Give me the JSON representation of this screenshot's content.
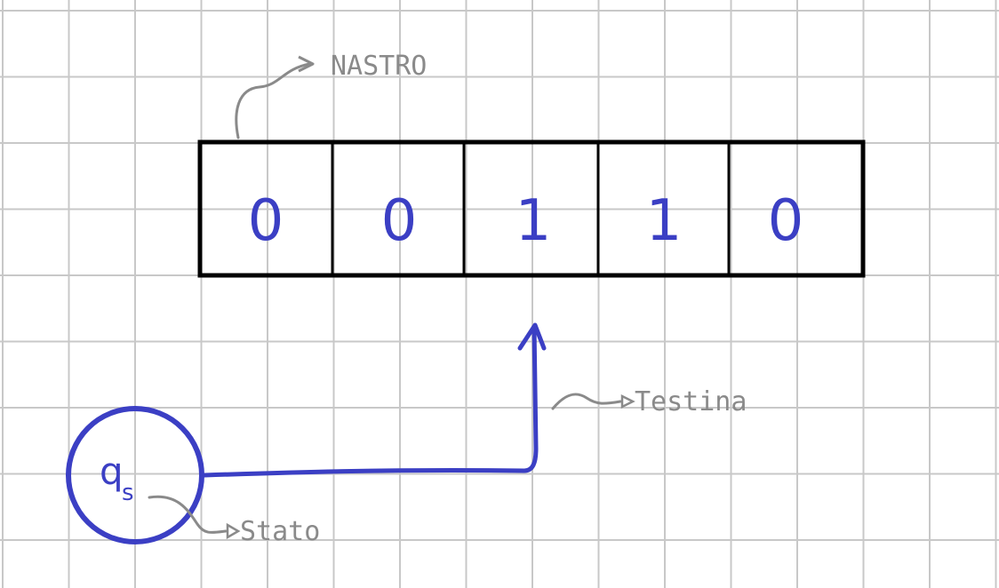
{
  "tape": {
    "label": "NASTRO",
    "cells": [
      "0",
      "0",
      "1",
      "1",
      "0"
    ]
  },
  "head": {
    "label": "Testina"
  },
  "state": {
    "symbol": "q",
    "subscript": "s",
    "label": "Stato"
  },
  "colors": {
    "grid": "#c8c8c8",
    "ink": "#000000",
    "blue": "#3b3fc4",
    "annotation": "#8a8a8a"
  }
}
